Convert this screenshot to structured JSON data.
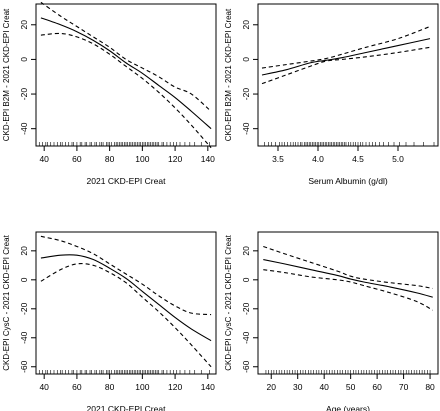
{
  "chart_data": [
    {
      "type": "line",
      "xlabel": "2021 CKD-EPI Creat",
      "ylabel": "CKD-EPI B2M - 2021 CKD-EPI Creat",
      "xlim": [
        35,
        145
      ],
      "ylim": [
        -50,
        32
      ],
      "xticks": [
        40,
        60,
        80,
        100,
        120,
        140
      ],
      "yticks": [
        -40,
        -20,
        0,
        20
      ],
      "series": [
        {
          "role": "fit",
          "line_style": "solid",
          "x": [
            38,
            50,
            60,
            70,
            80,
            90,
            100,
            110,
            120,
            130,
            142
          ],
          "values": [
            24,
            20,
            16,
            11,
            5,
            -2,
            -8,
            -15,
            -22,
            -30,
            -40
          ]
        },
        {
          "role": "upper",
          "line_style": "dashed",
          "x": [
            38,
            50,
            60,
            70,
            80,
            90,
            100,
            110,
            120,
            130,
            142
          ],
          "values": [
            33,
            25,
            19,
            13,
            7,
            0,
            -5,
            -10,
            -16,
            -20,
            -30
          ]
        },
        {
          "role": "lower",
          "line_style": "dashed",
          "x": [
            38,
            50,
            60,
            70,
            80,
            90,
            100,
            110,
            120,
            130,
            142
          ],
          "values": [
            14,
            15,
            13,
            9,
            3,
            -4,
            -11,
            -19,
            -28,
            -38,
            -51
          ]
        }
      ],
      "rug_x": [
        37,
        39,
        41,
        42,
        44,
        46,
        48,
        50,
        51,
        53,
        55,
        57,
        58,
        60,
        62,
        63,
        65,
        66,
        68,
        69,
        71,
        72,
        74,
        75,
        76,
        78,
        79,
        80,
        81,
        83,
        84,
        85,
        86,
        87,
        88,
        89,
        90,
        91,
        92,
        93,
        94,
        95,
        96,
        97,
        98,
        99,
        100,
        101,
        102,
        103,
        104,
        105,
        106,
        107,
        108,
        109,
        110,
        112,
        113,
        115,
        117,
        119,
        121,
        123,
        126,
        129,
        132,
        136,
        141
      ]
    },
    {
      "type": "line",
      "xlabel": "Serum Albumin (g/dl)",
      "ylabel": "CKD-EPI B2M - 2021 CKD-EPI Creat",
      "xlim": [
        3.25,
        5.5
      ],
      "ylim": [
        -50,
        32
      ],
      "xticks": [
        3.5,
        4.0,
        4.5,
        5.0
      ],
      "yticks": [
        -40,
        -20,
        0,
        20
      ],
      "series": [
        {
          "role": "fit",
          "line_style": "solid",
          "x": [
            3.3,
            3.6,
            3.9,
            4.1,
            4.3,
            4.6,
            5.0,
            5.4
          ],
          "values": [
            -9,
            -6,
            -2,
            -0.5,
            1,
            4,
            8,
            12
          ]
        },
        {
          "role": "upper",
          "line_style": "dashed",
          "x": [
            3.3,
            3.6,
            3.9,
            4.1,
            4.3,
            4.6,
            5.0,
            5.4
          ],
          "values": [
            -5,
            -3,
            -1,
            0.5,
            3,
            7,
            12,
            19
          ]
        },
        {
          "role": "lower",
          "line_style": "dashed",
          "x": [
            3.3,
            3.6,
            3.9,
            4.1,
            4.3,
            4.6,
            5.0,
            5.4
          ],
          "values": [
            -14,
            -9,
            -4,
            -1,
            0,
            1.5,
            4,
            7
          ]
        }
      ],
      "rug_x": [
        3.33,
        3.38,
        3.42,
        3.47,
        3.52,
        3.55,
        3.58,
        3.62,
        3.66,
        3.69,
        3.72,
        3.75,
        3.78,
        3.8,
        3.83,
        3.85,
        3.87,
        3.89,
        3.91,
        3.93,
        3.95,
        3.97,
        3.99,
        4.01,
        4.03,
        4.05,
        4.07,
        4.09,
        4.11,
        4.13,
        4.15,
        4.17,
        4.19,
        4.21,
        4.23,
        4.25,
        4.27,
        4.29,
        4.31,
        4.33,
        4.35,
        4.38,
        4.41,
        4.44,
        4.47,
        4.5,
        4.53,
        4.56,
        4.6,
        4.64,
        4.68,
        4.72,
        4.77,
        4.82,
        4.88,
        4.95,
        5.02,
        5.1,
        5.2,
        5.32,
        5.45
      ]
    },
    {
      "type": "line",
      "xlabel": "2021 CKD-EPI Creat",
      "ylabel": "CKD-EPI CysC - 2021 CKD-EPI Creat",
      "xlim": [
        35,
        145
      ],
      "ylim": [
        -65,
        33
      ],
      "xticks": [
        40,
        60,
        80,
        100,
        120,
        140
      ],
      "yticks": [
        -60,
        -40,
        -20,
        0,
        20
      ],
      "series": [
        {
          "role": "fit",
          "line_style": "solid",
          "x": [
            38,
            50,
            60,
            70,
            80,
            90,
            100,
            110,
            120,
            130,
            142
          ],
          "values": [
            15,
            17,
            17,
            14,
            8,
            1,
            -8,
            -17,
            -26,
            -34,
            -42
          ]
        },
        {
          "role": "upper",
          "line_style": "dashed",
          "x": [
            38,
            50,
            60,
            70,
            80,
            90,
            100,
            110,
            120,
            130,
            142
          ],
          "values": [
            30,
            27,
            23,
            18,
            11,
            4,
            -3,
            -11,
            -18,
            -23,
            -24
          ]
        },
        {
          "role": "lower",
          "line_style": "dashed",
          "x": [
            38,
            50,
            60,
            70,
            80,
            90,
            100,
            110,
            120,
            130,
            142
          ],
          "values": [
            -1,
            7,
            11,
            10,
            5,
            -2,
            -12,
            -22,
            -33,
            -45,
            -60
          ]
        }
      ],
      "rug_x": [
        37,
        39,
        41,
        42,
        44,
        46,
        48,
        50,
        51,
        53,
        55,
        57,
        58,
        60,
        62,
        63,
        65,
        66,
        68,
        69,
        71,
        72,
        74,
        75,
        76,
        78,
        79,
        80,
        81,
        83,
        84,
        85,
        86,
        87,
        88,
        89,
        90,
        91,
        92,
        93,
        94,
        95,
        96,
        97,
        98,
        99,
        100,
        101,
        102,
        103,
        104,
        105,
        106,
        107,
        108,
        109,
        110,
        112,
        113,
        115,
        117,
        119,
        121,
        123,
        126,
        129,
        132,
        136,
        141
      ]
    },
    {
      "type": "line",
      "xlabel": "Age (years)",
      "ylabel": "CKD-EPI CysC - 2021 CKD-EPI Creat",
      "xlim": [
        15,
        83
      ],
      "ylim": [
        -65,
        33
      ],
      "xticks": [
        20,
        30,
        40,
        50,
        60,
        70,
        80
      ],
      "yticks": [
        -60,
        -40,
        -20,
        0,
        20
      ],
      "series": [
        {
          "role": "fit",
          "line_style": "solid",
          "x": [
            17,
            25,
            35,
            45,
            50,
            55,
            65,
            75,
            81
          ],
          "values": [
            14,
            11,
            7,
            3,
            0.5,
            -1.5,
            -5,
            -9,
            -12
          ]
        },
        {
          "role": "upper",
          "line_style": "dashed",
          "x": [
            17,
            25,
            35,
            45,
            50,
            55,
            65,
            75,
            81
          ],
          "values": [
            23,
            18,
            12,
            6,
            2.5,
            0.5,
            -2,
            -4,
            -6
          ]
        },
        {
          "role": "lower",
          "line_style": "dashed",
          "x": [
            17,
            25,
            35,
            45,
            50,
            55,
            65,
            75,
            81
          ],
          "values": [
            7,
            5,
            2,
            0,
            -1.5,
            -4,
            -9,
            -15,
            -21
          ]
        }
      ],
      "rug_x": [
        18,
        19,
        20,
        21,
        22,
        23,
        24,
        25,
        26,
        27,
        28,
        29,
        30,
        31,
        32,
        33,
        34,
        35,
        36,
        37,
        38,
        39,
        40,
        41,
        42,
        43,
        44,
        45,
        46,
        47,
        48,
        49,
        50,
        51,
        52,
        53,
        54,
        55,
        56,
        57,
        58,
        59,
        60,
        61,
        62,
        63,
        64,
        65,
        66,
        67,
        68,
        69,
        70,
        71,
        72,
        73,
        74,
        75,
        76,
        77,
        78,
        79,
        80
      ]
    }
  ]
}
